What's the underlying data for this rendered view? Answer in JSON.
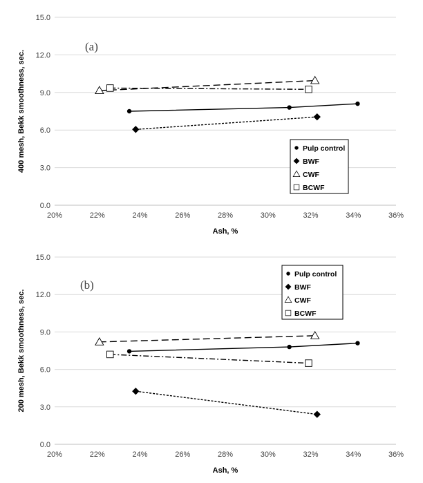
{
  "chart_data": [
    {
      "type": "line",
      "panel_label": "(a)",
      "title": "",
      "xlabel": "Ash, %",
      "ylabel": "400 mesh, Bekk smoothness, sec.",
      "xlim": [
        20,
        36
      ],
      "ylim": [
        0,
        15
      ],
      "x_ticks": [
        "20%",
        "22%",
        "24%",
        "26%",
        "28%",
        "30%",
        "32%",
        "34%",
        "36%"
      ],
      "y_ticks": [
        "0.0",
        "3.0",
        "6.0",
        "9.0",
        "12.0",
        "15.0"
      ],
      "grid": "horizontal",
      "legend_position": "lower-right",
      "series": [
        {
          "name": "Pulp control",
          "marker": "circle",
          "line": "solid",
          "x": [
            23.5,
            31.0,
            34.2
          ],
          "y": [
            7.5,
            7.8,
            8.1
          ]
        },
        {
          "name": "BWF",
          "marker": "diamond",
          "line": "dashed",
          "x": [
            23.8,
            32.3
          ],
          "y": [
            6.05,
            7.05
          ]
        },
        {
          "name": "CWF",
          "marker": "triangle",
          "line": "longdash",
          "x": [
            22.1,
            32.2
          ],
          "y": [
            9.15,
            9.95
          ]
        },
        {
          "name": "BCWF",
          "marker": "square",
          "line": "dashdot",
          "x": [
            22.6,
            31.9
          ],
          "y": [
            9.35,
            9.25
          ]
        }
      ]
    },
    {
      "type": "line",
      "panel_label": "(b)",
      "title": "",
      "xlabel": "Ash, %",
      "ylabel": "200 mesh, Bekk smoothness, sec.",
      "xlim": [
        20,
        36
      ],
      "ylim": [
        0,
        15
      ],
      "x_ticks": [
        "20%",
        "22%",
        "24%",
        "26%",
        "28%",
        "30%",
        "32%",
        "34%",
        "36%"
      ],
      "y_ticks": [
        "0.0",
        "3.0",
        "6.0",
        "9.0",
        "12.0",
        "15.0"
      ],
      "grid": "horizontal",
      "legend_position": "upper-right",
      "series": [
        {
          "name": "Pulp control",
          "marker": "circle",
          "line": "solid",
          "x": [
            23.5,
            31.0,
            34.2
          ],
          "y": [
            7.45,
            7.8,
            8.1
          ]
        },
        {
          "name": "BWF",
          "marker": "diamond",
          "line": "dashed",
          "x": [
            23.8,
            32.3
          ],
          "y": [
            4.25,
            2.4
          ]
        },
        {
          "name": "CWF",
          "marker": "triangle",
          "line": "longdash",
          "x": [
            22.1,
            32.2
          ],
          "y": [
            8.2,
            8.7
          ]
        },
        {
          "name": "BCWF",
          "marker": "square",
          "line": "dashdot",
          "x": [
            22.6,
            31.9
          ],
          "y": [
            7.2,
            6.5
          ]
        }
      ]
    }
  ]
}
